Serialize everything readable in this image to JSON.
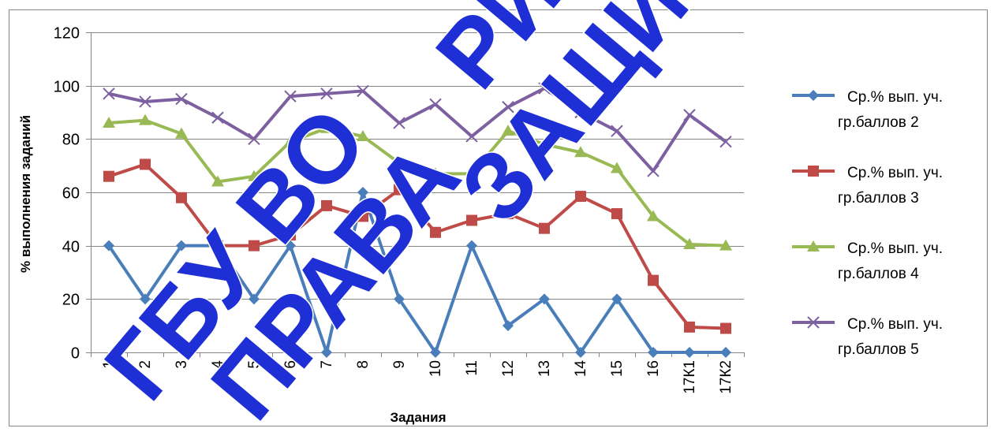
{
  "chart_data": {
    "type": "line",
    "title": "",
    "xlabel": "Задания",
    "ylabel": "% выполнения заданий",
    "ylim": [
      0,
      120
    ],
    "yticks": [
      0,
      20,
      40,
      60,
      80,
      100,
      120
    ],
    "grid": "horizontal",
    "legend_position": "right",
    "categories": [
      "1",
      "2",
      "3",
      "4",
      "5",
      "6",
      "7",
      "8",
      "9",
      "10",
      "11",
      "12",
      "13",
      "14",
      "15",
      "16",
      "17К1",
      "17К2"
    ],
    "series": [
      {
        "name": "Ср.% вып. уч. гр.баллов 2",
        "legend_lines": [
          "Ср.% вып. уч.",
          "гр.баллов 2"
        ],
        "color": "#4a7ebb",
        "marker": "diamond",
        "values": [
          40,
          20,
          40,
          40,
          20,
          40,
          0,
          60,
          20,
          0,
          40,
          10,
          20,
          0,
          20,
          0,
          0,
          0
        ]
      },
      {
        "name": "Ср.% вып. уч. гр.баллов 3",
        "legend_lines": [
          "Ср.% вып. уч.",
          "гр.баллов 3"
        ],
        "color": "#be4b48",
        "marker": "square",
        "values": [
          66,
          70.5,
          58,
          40,
          40,
          44,
          55,
          51,
          61,
          45,
          49.5,
          52,
          46.5,
          58.5,
          52,
          27,
          9.5,
          9
        ]
      },
      {
        "name": "Ср.% вып. уч. гр.баллов 4",
        "legend_lines": [
          "Ср.% вып. уч.",
          "гр.баллов 4"
        ],
        "color": "#98b954",
        "marker": "triangle",
        "values": [
          86,
          87,
          82,
          64,
          66,
          79,
          84,
          81,
          71,
          67,
          67,
          83,
          78,
          75,
          69,
          51,
          40.5,
          40
        ]
      },
      {
        "name": "Ср.% вып. уч. гр.баллов 5",
        "legend_lines": [
          "Ср.% вып. уч.",
          "гр.баллов 5"
        ],
        "color": "#7d60a0",
        "marker": "x",
        "values": [
          97,
          94,
          95,
          88,
          80,
          96,
          97,
          98,
          86,
          93,
          81,
          92,
          99,
          90,
          83,
          68,
          89,
          79
        ]
      }
    ],
    "watermark": [
      "ГБУ ВО",
      "РИАЦ",
      "ПРАВА",
      "ЗАЩИЩЕНЫ"
    ]
  }
}
